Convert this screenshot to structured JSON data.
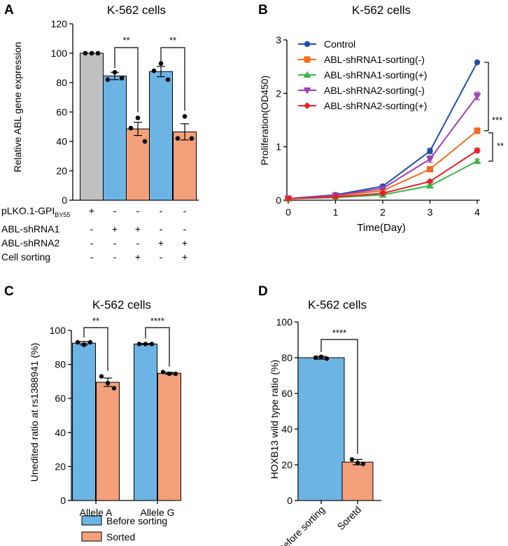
{
  "panels": {
    "A": {
      "letter": "A",
      "chart_data": {
        "type": "bar",
        "title": "K-562 cells",
        "ylabel": "Relative ABL gene expression",
        "ylim": [
          0,
          120
        ],
        "yticks": [
          "0",
          "20",
          "40",
          "60",
          "80",
          "100",
          "120"
        ],
        "bars": [
          {
            "value": 100,
            "err": 0,
            "points": [
              100,
              100,
              100
            ],
            "color": "#c0c0c0"
          },
          {
            "value": 84.5,
            "err": 2.5,
            "points": [
              87,
              82,
              83
            ],
            "color": "#6cb4e4"
          },
          {
            "value": 48.5,
            "err": 4.5,
            "points": [
              56,
              49,
              40
            ],
            "color": "#f4a07a"
          },
          {
            "value": 87.5,
            "err": 3.5,
            "points": [
              93,
              88,
              82
            ],
            "color": "#6cb4e4"
          },
          {
            "value": 46.5,
            "err": 5.5,
            "points": [
              57,
              42,
              42
            ],
            "color": "#f4a07a"
          }
        ],
        "significance": [
          {
            "from": 1,
            "to": 2,
            "label": "**"
          },
          {
            "from": 3,
            "to": 4,
            "label": "**"
          }
        ],
        "condition_rows": [
          {
            "label": "pLKO.1-GPI",
            "sub": "BY55",
            "marks": [
              "+",
              "-",
              "-",
              "-",
              "-"
            ]
          },
          {
            "label": "ABL-shRNA1",
            "sub": "",
            "marks": [
              "-",
              "+",
              "+",
              "-",
              "-"
            ]
          },
          {
            "label": "ABL-shRNA2",
            "sub": "",
            "marks": [
              "-",
              "-",
              "-",
              "+",
              "+"
            ]
          },
          {
            "label": "Cell sorting",
            "sub": "",
            "marks": [
              "-",
              "-",
              "+",
              "-",
              "+"
            ]
          }
        ]
      }
    },
    "B": {
      "letter": "B",
      "chart_data": {
        "type": "line",
        "title": "K-562 cells",
        "xlabel": "Time(Day)",
        "ylabel": "Proliferation(OD450)",
        "x": [
          0,
          1,
          2,
          3,
          4
        ],
        "xlim": [
          0,
          4
        ],
        "ylim": [
          0,
          3
        ],
        "yticks": [
          "0",
          "1",
          "2",
          "3"
        ],
        "xticks": [
          "0",
          "1",
          "2",
          "3",
          "4"
        ],
        "series": [
          {
            "name": "Control",
            "values": [
              0.03,
              0.1,
              0.26,
              0.92,
              2.58
            ],
            "err": [
              0,
              0.02,
              0.02,
              0.05,
              0
            ],
            "color": "#1f4fa8",
            "marker": "circle"
          },
          {
            "name": "ABL-shRNA1-sorting(-)",
            "values": [
              0.03,
              0.08,
              0.18,
              0.58,
              1.3
            ],
            "err": [
              0,
              0.01,
              0.02,
              0.03,
              0.05
            ],
            "color": "#f26b21",
            "marker": "square"
          },
          {
            "name": "ABL-shRNA1-sorting(+)",
            "values": [
              0.03,
              0.05,
              0.1,
              0.27,
              0.73
            ],
            "err": [
              0,
              0.01,
              0.01,
              0.02,
              0.04
            ],
            "color": "#3cb54a",
            "marker": "triangle-up"
          },
          {
            "name": "ABL-shRNA2-sorting(-)",
            "values": [
              0.03,
              0.09,
              0.22,
              0.77,
              1.95
            ],
            "err": [
              0,
              0.01,
              0.02,
              0.06,
              0.07
            ],
            "color": "#9b3fb0",
            "marker": "triangle-down"
          },
          {
            "name": "ABL-shRNA2-sorting(+)",
            "values": [
              0.03,
              0.06,
              0.13,
              0.35,
              0.93
            ],
            "err": [
              0,
              0.01,
              0.01,
              0.02,
              0.04
            ],
            "color": "#e8202a",
            "marker": "diamond"
          }
        ],
        "significance": [
          {
            "label": "***"
          },
          {
            "label": "**"
          }
        ]
      }
    },
    "C": {
      "letter": "C",
      "chart_data": {
        "type": "bar",
        "title": "K-562 cells",
        "ylabel": "Unedited ratio at rs1388941 (%)",
        "ylim": [
          0,
          100
        ],
        "yticks": [
          "0",
          "20",
          "40",
          "60",
          "80",
          "100"
        ],
        "categories": [
          "Allele A",
          "Allele G"
        ],
        "series": [
          {
            "name": "Before sorting",
            "values": [
              92.5,
              92
            ],
            "err": [
              1,
              0.3
            ],
            "points": [
              [
                93,
                91.5,
                93
              ],
              [
                92,
                92,
                92
              ]
            ],
            "color": "#6cb4e4"
          },
          {
            "name": "Sorted",
            "values": [
              69.5,
              74.8
            ],
            "err": [
              2.5,
              0.6
            ],
            "points": [
              [
                73,
                69,
                66
              ],
              [
                75.5,
                74.5,
                74.5
              ]
            ],
            "color": "#f4a07a"
          }
        ],
        "significance": [
          {
            "category": 0,
            "label": "**"
          },
          {
            "category": 1,
            "label": "****"
          }
        ],
        "legend": "bottom"
      }
    },
    "D": {
      "letter": "D",
      "chart_data": {
        "type": "bar",
        "title": "K-562 cells",
        "ylabel": "HOXB13 wild type ratio (%)",
        "ylim": [
          0,
          100
        ],
        "yticks": [
          "0",
          "20",
          "40",
          "60",
          "80",
          "100"
        ],
        "categories": [
          "Before sorting",
          "Soretd"
        ],
        "values": [
          80,
          21.5
        ],
        "err": [
          0.8,
          1.5
        ],
        "points": [
          [
            80,
            80.5,
            79.5
          ],
          [
            23,
            21,
            20.5
          ]
        ],
        "colors": [
          "#6cb4e4",
          "#f4a07a"
        ],
        "significance": [
          {
            "from": 0,
            "to": 1,
            "label": "****"
          }
        ]
      }
    }
  }
}
